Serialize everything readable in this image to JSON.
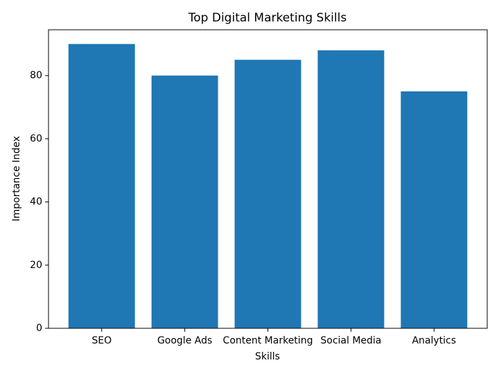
{
  "chart_data": {
    "type": "bar",
    "title": "Top Digital Marketing Skills",
    "x_label": "Skills",
    "y_label": "Importance Index",
    "categories": [
      "SEO",
      "Google Ads",
      "Content Marketing",
      "Social Media",
      "Analytics"
    ],
    "values": [
      90,
      80,
      85,
      88,
      75
    ],
    "color": "#1f77b4",
    "ylim": [
      0,
      94.5
    ],
    "yticks": [
      0,
      20,
      40,
      60,
      80
    ],
    "grid": false
  }
}
